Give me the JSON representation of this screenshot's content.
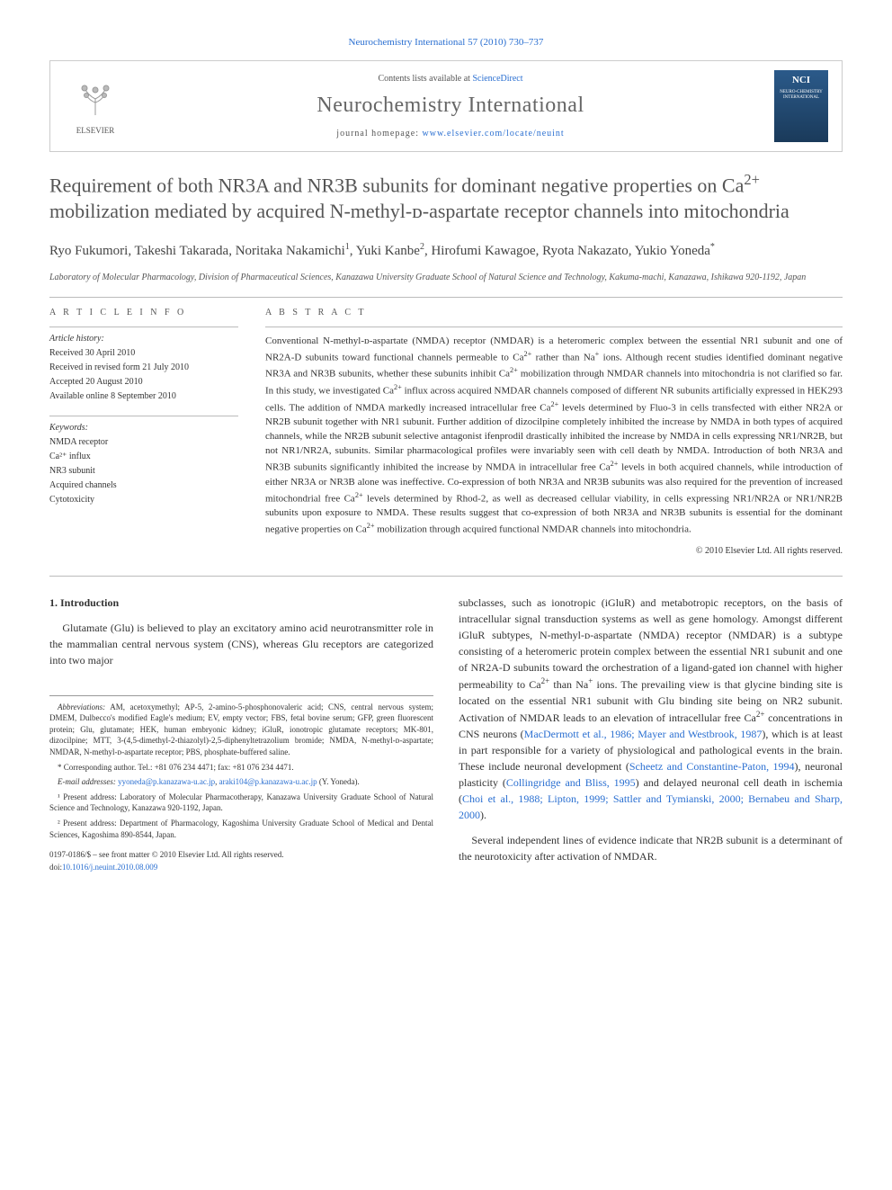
{
  "top": {
    "journal_ref": "Neurochemistry International 57 (2010) 730–737"
  },
  "header": {
    "publisher": "ELSEVIER",
    "contents": "Contents lists available at ",
    "contents_link": "ScienceDirect",
    "journal": "Neurochemistry International",
    "homepage_label": "journal homepage: ",
    "homepage_url": "www.elsevier.com/locate/neuint",
    "cover_abbr": "NCI",
    "cover_title": "NEURO-CHEMISTRY INTERNATIONAL"
  },
  "article": {
    "title_html": "Requirement of both NR3A and NR3B subunits for dominant negative properties on Ca<sup>2+</sup> mobilization mediated by acquired N-methyl-ᴅ-aspartate receptor channels into mitochondria",
    "authors_html": "Ryo Fukumori, Takeshi Takarada, Noritaka Nakamichi<sup>1</sup>, Yuki Kanbe<sup>2</sup>, Hirofumi Kawagoe, Ryota Nakazato, Yukio Yoneda<sup>*</sup>",
    "affiliation": "Laboratory of Molecular Pharmacology, Division of Pharmaceutical Sciences, Kanazawa University Graduate School of Natural Science and Technology, Kakuma-machi, Kanazawa, Ishikawa 920-1192, Japan"
  },
  "info": {
    "head": "A R T I C L E  I N F O",
    "history_label": "Article history:",
    "history": [
      "Received 30 April 2010",
      "Received in revised form 21 July 2010",
      "Accepted 20 August 2010",
      "Available online 8 September 2010"
    ],
    "keywords_label": "Keywords:",
    "keywords": [
      "NMDA receptor",
      "Ca²⁺ influx",
      "NR3 subunit",
      "Acquired channels",
      "Cytotoxicity"
    ]
  },
  "abstract": {
    "head": "A B S T R A C T",
    "text_html": "Conventional N-methyl-ᴅ-aspartate (NMDA) receptor (NMDAR) is a heteromeric complex between the essential NR1 subunit and one of NR2A-D subunits toward functional channels permeable to Ca<sup>2+</sup> rather than Na<sup>+</sup> ions. Although recent studies identified dominant negative NR3A and NR3B subunits, whether these subunits inhibit Ca<sup>2+</sup> mobilization through NMDAR channels into mitochondria is not clarified so far. In this study, we investigated Ca<sup>2+</sup> influx across acquired NMDAR channels composed of different NR subunits artificially expressed in HEK293 cells. The addition of NMDA markedly increased intracellular free Ca<sup>2+</sup> levels determined by Fluo-3 in cells transfected with either NR2A or NR2B subunit together with NR1 subunit. Further addition of dizocilpine completely inhibited the increase by NMDA in both types of acquired channels, while the NR2B subunit selective antagonist ifenprodil drastically inhibited the increase by NMDA in cells expressing NR1/NR2B, but not NR1/NR2A, subunits. Similar pharmacological profiles were invariably seen with cell death by NMDA. Introduction of both NR3A and NR3B subunits significantly inhibited the increase by NMDA in intracellular free Ca<sup>2+</sup> levels in both acquired channels, while introduction of either NR3A or NR3B alone was ineffective. Co-expression of both NR3A and NR3B subunits was also required for the prevention of increased mitochondrial free Ca<sup>2+</sup> levels determined by Rhod-2, as well as decreased cellular viability, in cells expressing NR1/NR2A or NR1/NR2B subunits upon exposure to NMDA. These results suggest that co-expression of both NR3A and NR3B subunits is essential for the dominant negative properties on Ca<sup>2+</sup> mobilization through acquired functional NMDAR channels into mitochondria.",
    "copyright": "© 2010 Elsevier Ltd. All rights reserved."
  },
  "body": {
    "sec1_title": "1. Introduction",
    "col1_p1": "Glutamate (Glu) is believed to play an excitatory amino acid neurotransmitter role in the mammalian central nervous system (CNS), whereas Glu receptors are categorized into two major",
    "col2_p1_html": "subclasses, such as ionotropic (iGluR) and metabotropic receptors, on the basis of intracellular signal transduction systems as well as gene homology. Amongst different iGluR subtypes, N-methyl-ᴅ-aspartate (NMDA) receptor (NMDAR) is a subtype consisting of a heteromeric protein complex between the essential NR1 subunit and one of NR2A-D subunits toward the orchestration of a ligand-gated ion channel with higher permeability to Ca<sup>2+</sup> than Na<sup>+</sup> ions. The prevailing view is that glycine binding site is located on the essential NR1 subunit with Glu binding site being on NR2 subunit. Activation of NMDAR leads to an elevation of intracellular free Ca<sup>2+</sup> concentrations in CNS neurons (<a href=\"#\">MacDermott et al., 1986; Mayer and Westbrook, 1987</a>), which is at least in part responsible for a variety of physiological and pathological events in the brain. These include neuronal development (<a href=\"#\">Scheetz and Constantine-Paton, 1994</a>), neuronal plasticity (<a href=\"#\">Collingridge and Bliss, 1995</a>) and delayed neuronal cell death in ischemia (<a href=\"#\">Choi et al., 1988; Lipton, 1999; Sattler and Tymianski, 2000; Bernabeu and Sharp, 2000</a>).",
    "col2_p2": "Several independent lines of evidence indicate that NR2B subunit is a determinant of the neurotoxicity after activation of NMDAR."
  },
  "footnotes": {
    "abbr_label": "Abbreviations:",
    "abbr": " AM, acetoxymethyl; AP-5, 2-amino-5-phosphonovaleric acid; CNS, central nervous system; DMEM, Dulbecco's modified Eagle's medium; EV, empty vector; FBS, fetal bovine serum; GFP, green fluorescent protein; Glu, glutamate; HEK, human embryonic kidney; iGluR, ionotropic glutamate receptors; MK-801, dizocilpine; MTT, 3-(4,5-dimethyl-2-thiazolyl)-2,5-diphenyltetrazolium bromide; NMDA, N-methyl-ᴅ-aspartate; NMDAR, N-methyl-ᴅ-aspartate receptor; PBS, phosphate-buffered saline.",
    "corr": "* Corresponding author. Tel.: +81 076 234 4471; fax: +81 076 234 4471.",
    "email_label": "E-mail addresses: ",
    "email1": "yyoneda@p.kanazawa-u.ac.jp",
    "email2": "araki104@p.kanazawa-u.ac.jp",
    "email_tail": " (Y. Yoneda).",
    "fn1": "¹ Present address: Laboratory of Molecular Pharmacotherapy, Kanazawa University Graduate School of Natural Science and Technology, Kanazawa 920-1192, Japan.",
    "fn2": "² Present address: Department of Pharmacology, Kagoshima University Graduate School of Medical and Dental Sciences, Kagoshima 890-8544, Japan.",
    "bottom1": "0197-0186/$ – see front matter © 2010 Elsevier Ltd. All rights reserved.",
    "bottom2_label": "doi:",
    "bottom2_link": "10.1016/j.neuint.2010.08.009"
  }
}
